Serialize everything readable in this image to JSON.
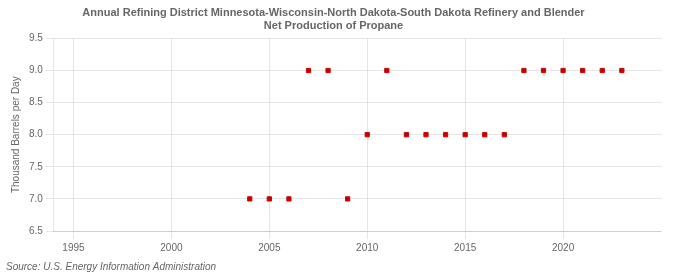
{
  "chart_data": {
    "type": "scatter",
    "title": "Annual Refining District Minnesota-Wisconsin-North Dakota-South Dakota Refinery and Blender\nNet Production of Propane",
    "ylabel": "Thousand Barrels per Day",
    "source": "Source: U.S. Energy Information Administration",
    "x": [
      2004,
      2005,
      2006,
      2007,
      2008,
      2009,
      2010,
      2011,
      2012,
      2013,
      2014,
      2015,
      2016,
      2017,
      2018,
      2019,
      2020,
      2021,
      2022,
      2023
    ],
    "values": [
      7.0,
      7.0,
      7.0,
      9.0,
      9.0,
      7.0,
      8.0,
      9.0,
      8.0,
      8.0,
      8.0,
      8.0,
      8.0,
      8.0,
      9.0,
      9.0,
      9.0,
      9.0,
      9.0,
      9.0
    ],
    "color": "#cc0000",
    "marker": "square",
    "xlim": [
      1994,
      2025
    ],
    "xticks": [
      1995,
      2000,
      2005,
      2010,
      2015,
      2020
    ],
    "ylim": [
      6.5,
      9.5
    ],
    "yticks": [
      6.5,
      {
        "value": 7.0,
        "label": "7.0"
      },
      7.5,
      {
        "value": 8.0,
        "label": "8.0"
      },
      8.5,
      {
        "value": 9.0,
        "label": "9.0"
      },
      9.5
    ],
    "grid": true
  }
}
